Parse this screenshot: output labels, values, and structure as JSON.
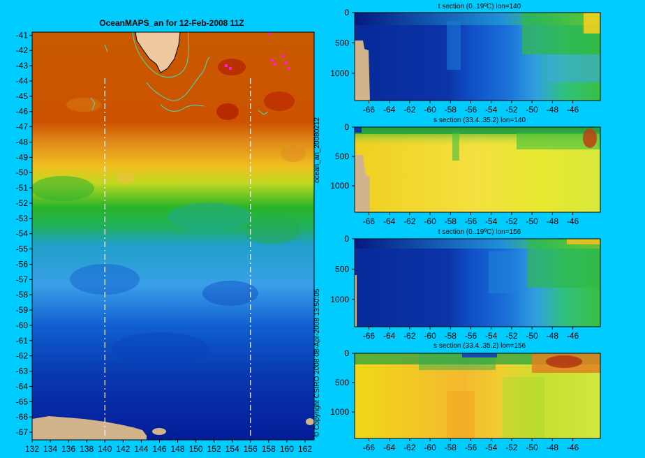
{
  "colors": {
    "background": "#00ccff",
    "land": "#d2b48c",
    "contour": "#40e0c0",
    "magenta": "#ff20c0",
    "guide": "#ffffff"
  },
  "side_labels": {
    "file_id": "ocean_an_20080212",
    "copyright": "© Copyright CSIRO 2008   08-Apr-2008 13:50:05"
  },
  "chart_data": [
    {
      "type": "heatmap",
      "title": "OceanMAPS_an for 12-Feb-2008 11Z",
      "x_ticks": [
        "132",
        "134",
        "136",
        "138",
        "140",
        "142",
        "144",
        "146",
        "148",
        "150",
        "152",
        "154",
        "156",
        "158",
        "160",
        "162"
      ],
      "y_ticks": [
        "-41",
        "-42",
        "-43",
        "-44",
        "-45",
        "-46",
        "-47",
        "-48",
        "-49",
        "-50",
        "-51",
        "-52",
        "-53",
        "-54",
        "-55",
        "-56",
        "-57",
        "-58",
        "-59",
        "-60",
        "-61",
        "-62",
        "-63",
        "-64",
        "-65",
        "-66",
        "-67"
      ],
      "xlim": [
        132,
        163
      ],
      "ylim": [
        -67.5,
        -40.8
      ],
      "section_lines_lon": [
        140,
        156
      ],
      "zonal_bands": [
        {
          "lat_from": -41,
          "lat_to": -47.5,
          "field": "orange-red (warmest)"
        },
        {
          "lat_from": -47.5,
          "lat_to": -50.5,
          "field": "yellow-orange"
        },
        {
          "lat_from": -50.5,
          "lat_to": -53.5,
          "field": "green"
        },
        {
          "lat_from": -53.5,
          "lat_to": -60,
          "field": "light blue"
        },
        {
          "lat_from": -60,
          "lat_to": -67.5,
          "field": "dark blue (coldest)"
        }
      ]
    },
    {
      "type": "heatmap",
      "title": "t section (0..19ºC) lon=140",
      "x_ticks": [
        "-66",
        "-64",
        "-62",
        "-60",
        "-58",
        "-56",
        "-54",
        "-52",
        "-50",
        "-48",
        "-46"
      ],
      "y_ticks": [
        "0",
        "500",
        "1000"
      ],
      "xlim": [
        -67.4,
        -43.3
      ],
      "ylim": [
        1450,
        0
      ]
    },
    {
      "type": "heatmap",
      "title": "s section (33.4..35.2) lon=140",
      "x_ticks": [
        "-66",
        "-64",
        "-62",
        "-60",
        "-58",
        "-56",
        "-54",
        "-52",
        "-50",
        "-48",
        "-46"
      ],
      "y_ticks": [
        "0",
        "500",
        "1000"
      ],
      "xlim": [
        -67.4,
        -43.3
      ],
      "ylim": [
        1450,
        0
      ]
    },
    {
      "type": "heatmap",
      "title": "t section (0..19ºC) lon=156",
      "x_ticks": [
        "-66",
        "-64",
        "-62",
        "-60",
        "-58",
        "-56",
        "-54",
        "-52",
        "-50",
        "-48",
        "-46"
      ],
      "y_ticks": [
        "0",
        "500",
        "1000"
      ],
      "xlim": [
        -67.4,
        -43.3
      ],
      "ylim": [
        1450,
        0
      ]
    },
    {
      "type": "heatmap",
      "title": "s section (33.4..35.2) lon=156",
      "x_ticks": [
        "-66",
        "-64",
        "-62",
        "-60",
        "-58",
        "-56",
        "-54",
        "-52",
        "-50",
        "-48",
        "-46"
      ],
      "y_ticks": [
        "0",
        "500",
        "1000"
      ],
      "xlim": [
        -67.4,
        -43.3
      ],
      "ylim": [
        1450,
        0
      ]
    }
  ]
}
